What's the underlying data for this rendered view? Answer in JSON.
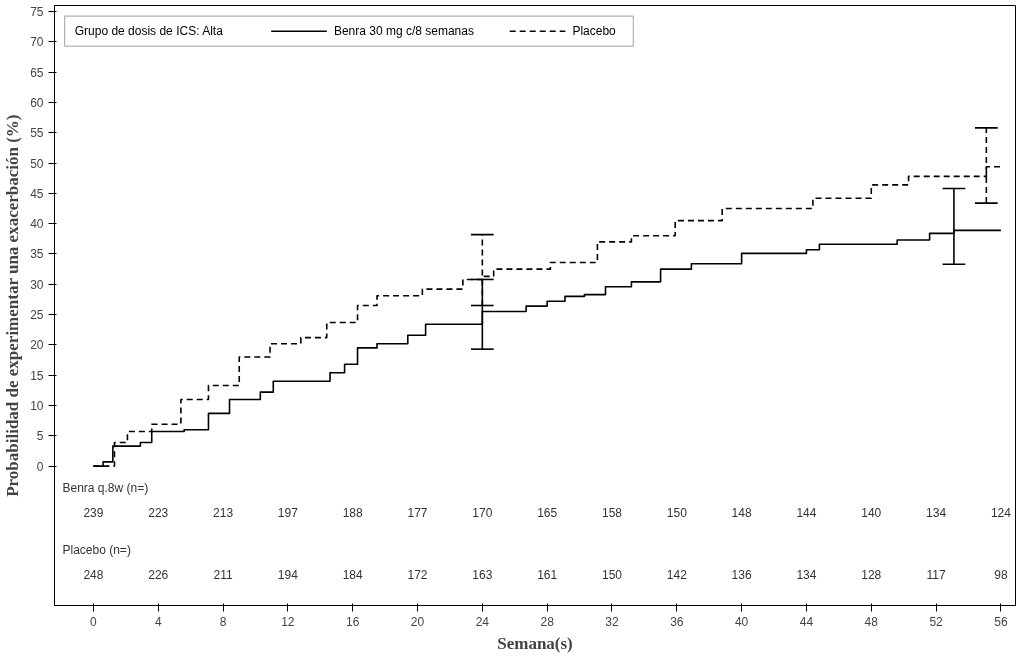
{
  "chart_data": {
    "type": "step",
    "xlabel": "Semana(s)",
    "ylabel": "Probabilidad de experimentar una exacerbación (%)",
    "legend_title": "Grupo de dosis de ICS: Alta",
    "legend": "top left",
    "grid": false,
    "xlim": [
      -2.4,
      56.9
    ],
    "ylim": [
      -23,
      76
    ],
    "xticks": [
      0,
      4,
      8,
      12,
      16,
      20,
      24,
      28,
      32,
      36,
      40,
      44,
      48,
      52,
      56
    ],
    "yticks": [
      0,
      5,
      10,
      15,
      20,
      25,
      30,
      35,
      40,
      45,
      50,
      55,
      60,
      65,
      70,
      75
    ],
    "series": [
      {
        "name": "Benra 30 mg c/8 semanas",
        "color": "#000000",
        "line_style": "solid",
        "x": [
          0,
          0.6,
          1.2,
          2.9,
          3.6,
          5.6,
          7.1,
          8.4,
          10.3,
          11.1,
          14.6,
          15.5,
          16.3,
          17.5,
          19.4,
          20.5,
          24,
          26.7,
          28,
          29.1,
          30.3,
          31.6,
          33.2,
          35,
          36.9,
          40,
          44,
          44.8,
          49.6,
          51.6,
          53.1,
          56
        ],
        "values": [
          0,
          0.7,
          3.3,
          3.9,
          5.7,
          6,
          8.7,
          11,
          12.2,
          14,
          15.4,
          16.8,
          19.5,
          20.2,
          21.6,
          23.4,
          25.5,
          26.4,
          27.2,
          28,
          28.3,
          29.6,
          30.4,
          32.5,
          33.4,
          35.1,
          35.7,
          36.6,
          37.3,
          38.4,
          38.9,
          38.9
        ],
        "errors": [
          null,
          null,
          null,
          null,
          null,
          null,
          null,
          null,
          null,
          null,
          null,
          null,
          null,
          null,
          null,
          null,
          [
            19.3,
            30.8
          ],
          null,
          null,
          null,
          null,
          null,
          null,
          null,
          null,
          null,
          null,
          null,
          null,
          null,
          [
            33.3,
            45.8
          ],
          null
        ]
      },
      {
        "name": "Placebo",
        "color": "#000000",
        "line_style": "dashed",
        "x": [
          0,
          1.3,
          2.1,
          3.6,
          5.4,
          7.1,
          9,
          10.9,
          12.8,
          14.4,
          16.3,
          17.5,
          20.3,
          22.8,
          24,
          24.7,
          28.2,
          31.1,
          33.2,
          35.9,
          38.8,
          44.4,
          48,
          50.3,
          55.1,
          56
        ],
        "values": [
          0,
          3.9,
          5.7,
          6.9,
          11,
          13.3,
          18,
          20.2,
          21.2,
          23.7,
          26.5,
          28.1,
          29.2,
          30.8,
          31.3,
          32.5,
          33.6,
          37,
          38,
          40.5,
          42.5,
          44.2,
          46.4,
          47.8,
          49.4,
          49.4
        ],
        "errors": [
          null,
          null,
          null,
          null,
          null,
          null,
          null,
          null,
          null,
          null,
          null,
          null,
          null,
          null,
          [
            26.5,
            38.2
          ],
          null,
          null,
          null,
          null,
          null,
          null,
          null,
          null,
          null,
          [
            43.4,
            55.8
          ],
          null
        ]
      }
    ],
    "annotations": [
      "Benra q.8w (n=)",
      "239",
      "223",
      "213",
      "197",
      "188",
      "177",
      "170",
      "165",
      "158",
      "150",
      "148",
      "144",
      "140",
      "134",
      "124",
      "Placebo (n=)",
      "248",
      "226",
      "211",
      "194",
      "184",
      "172",
      "163",
      "161",
      "150",
      "142",
      "136",
      "134",
      "128",
      "117",
      "98"
    ]
  }
}
